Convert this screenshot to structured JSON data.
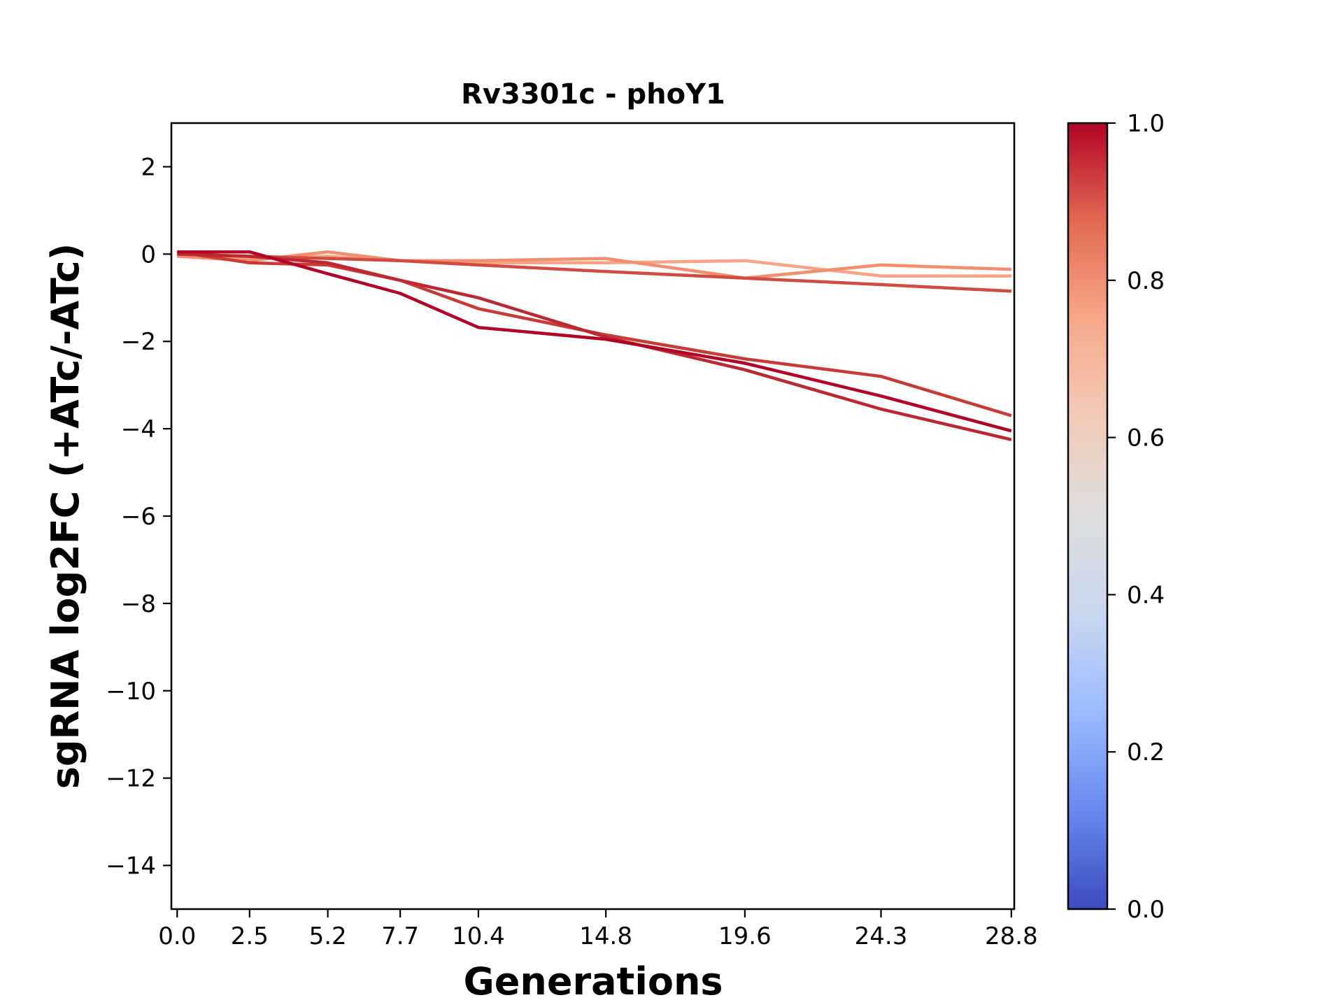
{
  "chart_data": {
    "type": "line",
    "title": "Rv3301c - phoY1",
    "xlabel": "Generations",
    "ylabel": "sgRNA log2FC (+ATc/-ATc)",
    "x": [
      0.0,
      2.5,
      5.2,
      7.7,
      10.4,
      14.8,
      19.6,
      24.3,
      28.8
    ],
    "x_tick_labels": [
      "0.0",
      "2.5",
      "5.2",
      "7.7",
      "10.4",
      "14.8",
      "19.6",
      "24.3",
      "28.8"
    ],
    "xlim": [
      -0.2,
      28.9
    ],
    "ylim": [
      -15,
      3
    ],
    "y_ticks": [
      2,
      0,
      -2,
      -4,
      -6,
      -8,
      -10,
      -12,
      -14
    ],
    "y_tick_labels": [
      "2",
      "0",
      "−2",
      "−4",
      "−6",
      "−8",
      "−10",
      "−12",
      "−14"
    ],
    "grid": false,
    "legend": "none",
    "colormap": "coolwarm",
    "colorbar": {
      "range": [
        0.0,
        1.0
      ],
      "ticks": [
        0.0,
        0.2,
        0.4,
        0.6,
        0.8,
        1.0
      ],
      "tick_labels": [
        "0.0",
        "0.2",
        "0.4",
        "0.6",
        "0.8",
        "1.0"
      ],
      "stops": [
        "#3b4cc0",
        "#6788ee",
        "#9abbff",
        "#c9d7f0",
        "#dddddd",
        "#f2cbb7",
        "#f7a889",
        "#e26952",
        "#b40426"
      ]
    },
    "series": [
      {
        "color": "#f5a585",
        "values": [
          0.0,
          -0.1,
          -0.05,
          -0.15,
          -0.2,
          -0.2,
          -0.15,
          -0.5,
          -0.5
        ]
      },
      {
        "color": "#f08e6e",
        "values": [
          -0.05,
          -0.15,
          0.05,
          -0.15,
          -0.15,
          -0.1,
          -0.55,
          -0.25,
          -0.35
        ]
      },
      {
        "color": "#d24b40",
        "values": [
          0.0,
          -0.05,
          -0.1,
          -0.15,
          -0.25,
          -0.4,
          -0.55,
          -0.7,
          -0.85
        ]
      },
      {
        "color": "#c83a36",
        "values": [
          0.05,
          -0.2,
          -0.25,
          -0.6,
          -1.25,
          -1.85,
          -2.4,
          -2.8,
          -3.7
        ]
      },
      {
        "color": "#bd2731",
        "values": [
          0.0,
          -0.05,
          -0.2,
          -0.6,
          -1.0,
          -1.9,
          -2.65,
          -3.55,
          -4.25
        ]
      },
      {
        "color": "#b40426",
        "values": [
          0.05,
          0.05,
          -0.45,
          -0.9,
          -1.68,
          -1.95,
          -2.5,
          -3.25,
          -4.05
        ]
      }
    ]
  }
}
